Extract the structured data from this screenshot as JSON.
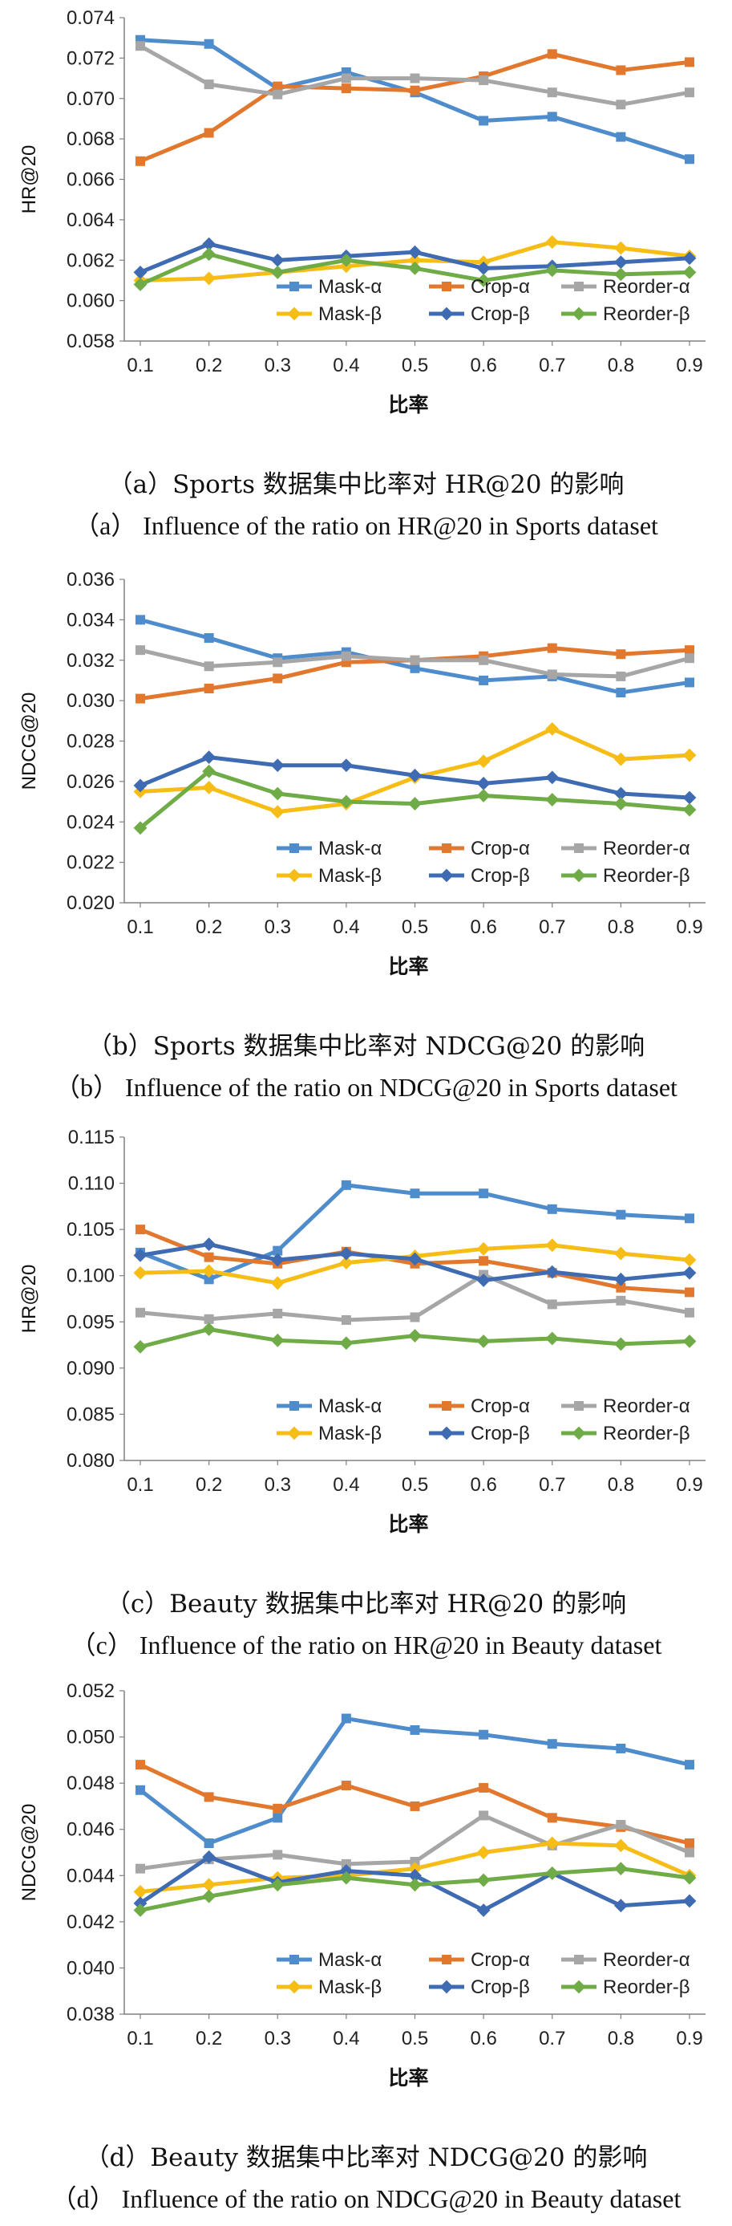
{
  "charts": [
    {
      "caption_cn": "（a）Sports 数据集中比率对 HR@20 的影响",
      "caption_en": "（a） Influence of the ratio on HR@20 in Sports dataset",
      "chart_data": {
        "type": "line",
        "ylabel": "HR@20",
        "xlabel": "比率",
        "x": [
          0.1,
          0.2,
          0.3,
          0.4,
          0.5,
          0.6,
          0.7,
          0.8,
          0.9
        ],
        "ylim": [
          0.058,
          0.074
        ],
        "yticks": [
          "0.058",
          "0.060",
          "0.062",
          "0.064",
          "0.066",
          "0.068",
          "0.070",
          "0.072",
          "0.074"
        ],
        "legend_position": "lower-right",
        "grid": false,
        "series": [
          {
            "name": "Mask-α",
            "color": "#4f8ccc",
            "marker": "square",
            "values": [
              0.0729,
              0.0727,
              0.0705,
              0.0713,
              0.0703,
              0.0689,
              0.0691,
              0.0681,
              0.067
            ]
          },
          {
            "name": "Crop-α",
            "color": "#e2782e",
            "marker": "square",
            "values": [
              0.0669,
              0.0683,
              0.0706,
              0.0705,
              0.0704,
              0.0711,
              0.0722,
              0.0714,
              0.0718
            ]
          },
          {
            "name": "Reorder-α",
            "color": "#a6a6a6",
            "marker": "square",
            "values": [
              0.0726,
              0.0707,
              0.0702,
              0.071,
              0.071,
              0.0709,
              0.0703,
              0.0697,
              0.0703
            ]
          },
          {
            "name": "Mask-β",
            "color": "#f5bd16",
            "marker": "diamond",
            "values": [
              0.061,
              0.0611,
              0.0614,
              0.0617,
              0.062,
              0.0619,
              0.0629,
              0.0626,
              0.0622
            ]
          },
          {
            "name": "Crop-β",
            "color": "#3f6bb3",
            "marker": "diamond",
            "values": [
              0.0614,
              0.0628,
              0.062,
              0.0622,
              0.0624,
              0.0616,
              0.0617,
              0.0619,
              0.0621
            ]
          },
          {
            "name": "Reorder-β",
            "color": "#6fab46",
            "marker": "diamond",
            "values": [
              0.0608,
              0.0623,
              0.0614,
              0.062,
              0.0616,
              0.061,
              0.0615,
              0.0613,
              0.0614
            ]
          }
        ]
      }
    },
    {
      "caption_cn": "（b）Sports 数据集中比率对 NDCG@20 的影响",
      "caption_en": "（b） Influence of the ratio on NDCG@20 in Sports dataset",
      "chart_data": {
        "type": "line",
        "ylabel": "NDCG@20",
        "xlabel": "比率",
        "x": [
          0.1,
          0.2,
          0.3,
          0.4,
          0.5,
          0.6,
          0.7,
          0.8,
          0.9
        ],
        "ylim": [
          0.02,
          0.036
        ],
        "yticks": [
          "0.020",
          "0.022",
          "0.024",
          "0.026",
          "0.028",
          "0.030",
          "0.032",
          "0.034",
          "0.036"
        ],
        "legend_position": "lower-right",
        "grid": false,
        "series": [
          {
            "name": "Mask-α",
            "color": "#4f8ccc",
            "marker": "square",
            "values": [
              0.034,
              0.0331,
              0.0321,
              0.0324,
              0.0316,
              0.031,
              0.0312,
              0.0304,
              0.0309
            ]
          },
          {
            "name": "Crop-α",
            "color": "#e2782e",
            "marker": "square",
            "values": [
              0.0301,
              0.0306,
              0.0311,
              0.0319,
              0.032,
              0.0322,
              0.0326,
              0.0323,
              0.0325
            ]
          },
          {
            "name": "Reorder-α",
            "color": "#a6a6a6",
            "marker": "square",
            "values": [
              0.0325,
              0.0317,
              0.0319,
              0.0322,
              0.032,
              0.032,
              0.0313,
              0.0312,
              0.0321
            ]
          },
          {
            "name": "Mask-β",
            "color": "#f5bd16",
            "marker": "diamond",
            "values": [
              0.0255,
              0.0257,
              0.0245,
              0.0249,
              0.0262,
              0.027,
              0.0286,
              0.0271,
              0.0273
            ]
          },
          {
            "name": "Crop-β",
            "color": "#3f6bb3",
            "marker": "diamond",
            "values": [
              0.0258,
              0.0272,
              0.0268,
              0.0268,
              0.0263,
              0.0259,
              0.0262,
              0.0254,
              0.0252
            ]
          },
          {
            "name": "Reorder-β",
            "color": "#6fab46",
            "marker": "diamond",
            "values": [
              0.0237,
              0.0265,
              0.0254,
              0.025,
              0.0249,
              0.0253,
              0.0251,
              0.0249,
              0.0246
            ]
          }
        ]
      }
    },
    {
      "caption_cn": "（c）Beauty 数据集中比率对 HR@20 的影响",
      "caption_en": "（c） Influence of the ratio on HR@20 in Beauty dataset",
      "chart_data": {
        "type": "line",
        "ylabel": "HR@20",
        "xlabel": "比率",
        "x": [
          0.1,
          0.2,
          0.3,
          0.4,
          0.5,
          0.6,
          0.7,
          0.8,
          0.9
        ],
        "ylim": [
          0.08,
          0.115
        ],
        "yticks": [
          "0.080",
          "0.085",
          "0.090",
          "0.095",
          "0.100",
          "0.105",
          "0.110",
          "0.115"
        ],
        "legend_position": "lower-right",
        "grid": false,
        "series": [
          {
            "name": "Mask-α",
            "color": "#4f8ccc",
            "marker": "square",
            "values": [
              0.1025,
              0.0996,
              0.1027,
              0.1098,
              0.1089,
              0.1089,
              0.1072,
              0.1066,
              0.1062
            ]
          },
          {
            "name": "Crop-α",
            "color": "#e2782e",
            "marker": "square",
            "values": [
              0.105,
              0.102,
              0.1013,
              0.1026,
              0.1013,
              0.1016,
              0.1003,
              0.0987,
              0.0982
            ]
          },
          {
            "name": "Reorder-α",
            "color": "#a6a6a6",
            "marker": "square",
            "values": [
              0.096,
              0.0953,
              0.0959,
              0.0952,
              0.0955,
              0.1001,
              0.0969,
              0.0973,
              0.096
            ]
          },
          {
            "name": "Mask-β",
            "color": "#f5bd16",
            "marker": "diamond",
            "values": [
              0.1003,
              0.1005,
              0.0992,
              0.1014,
              0.1021,
              0.1029,
              0.1033,
              0.1024,
              0.1017
            ]
          },
          {
            "name": "Crop-β",
            "color": "#3f6bb3",
            "marker": "diamond",
            "values": [
              0.1022,
              0.1034,
              0.1017,
              0.1024,
              0.1018,
              0.0995,
              0.1004,
              0.0996,
              0.1003
            ]
          },
          {
            "name": "Reorder-β",
            "color": "#6fab46",
            "marker": "diamond",
            "values": [
              0.0923,
              0.0942,
              0.093,
              0.0927,
              0.0935,
              0.0929,
              0.0932,
              0.0926,
              0.0929
            ]
          }
        ]
      }
    },
    {
      "caption_cn": "（d）Beauty 数据集中比率对 NDCG@20 的影响",
      "caption_en": "（d） Influence of the ratio on NDCG@20 in Beauty dataset",
      "chart_data": {
        "type": "line",
        "ylabel": "NDCG@20",
        "xlabel": "比率",
        "x": [
          0.1,
          0.2,
          0.3,
          0.4,
          0.5,
          0.6,
          0.7,
          0.8,
          0.9
        ],
        "ylim": [
          0.038,
          0.052
        ],
        "yticks": [
          "0.038",
          "0.040",
          "0.042",
          "0.044",
          "0.046",
          "0.048",
          "0.050",
          "0.052"
        ],
        "legend_position": "lower-right",
        "grid": false,
        "series": [
          {
            "name": "Mask-α",
            "color": "#4f8ccc",
            "marker": "square",
            "values": [
              0.0477,
              0.0454,
              0.0465,
              0.0508,
              0.0503,
              0.0501,
              0.0497,
              0.0495,
              0.0488
            ]
          },
          {
            "name": "Crop-α",
            "color": "#e2782e",
            "marker": "square",
            "values": [
              0.0488,
              0.0474,
              0.0469,
              0.0479,
              0.047,
              0.0478,
              0.0465,
              0.0461,
              0.0454
            ]
          },
          {
            "name": "Reorder-α",
            "color": "#a6a6a6",
            "marker": "square",
            "values": [
              0.0443,
              0.0447,
              0.0449,
              0.0445,
              0.0446,
              0.0466,
              0.0453,
              0.0462,
              0.045
            ]
          },
          {
            "name": "Mask-β",
            "color": "#f5bd16",
            "marker": "diamond",
            "values": [
              0.0433,
              0.0436,
              0.0439,
              0.044,
              0.0443,
              0.045,
              0.0454,
              0.0453,
              0.044
            ]
          },
          {
            "name": "Crop-β",
            "color": "#3f6bb3",
            "marker": "diamond",
            "values": [
              0.0428,
              0.0448,
              0.0437,
              0.0442,
              0.044,
              0.0425,
              0.0441,
              0.0427,
              0.0429
            ]
          },
          {
            "name": "Reorder-β",
            "color": "#6fab46",
            "marker": "diamond",
            "values": [
              0.0425,
              0.0431,
              0.0436,
              0.0439,
              0.0436,
              0.0438,
              0.0441,
              0.0443,
              0.0439
            ]
          }
        ]
      }
    }
  ]
}
